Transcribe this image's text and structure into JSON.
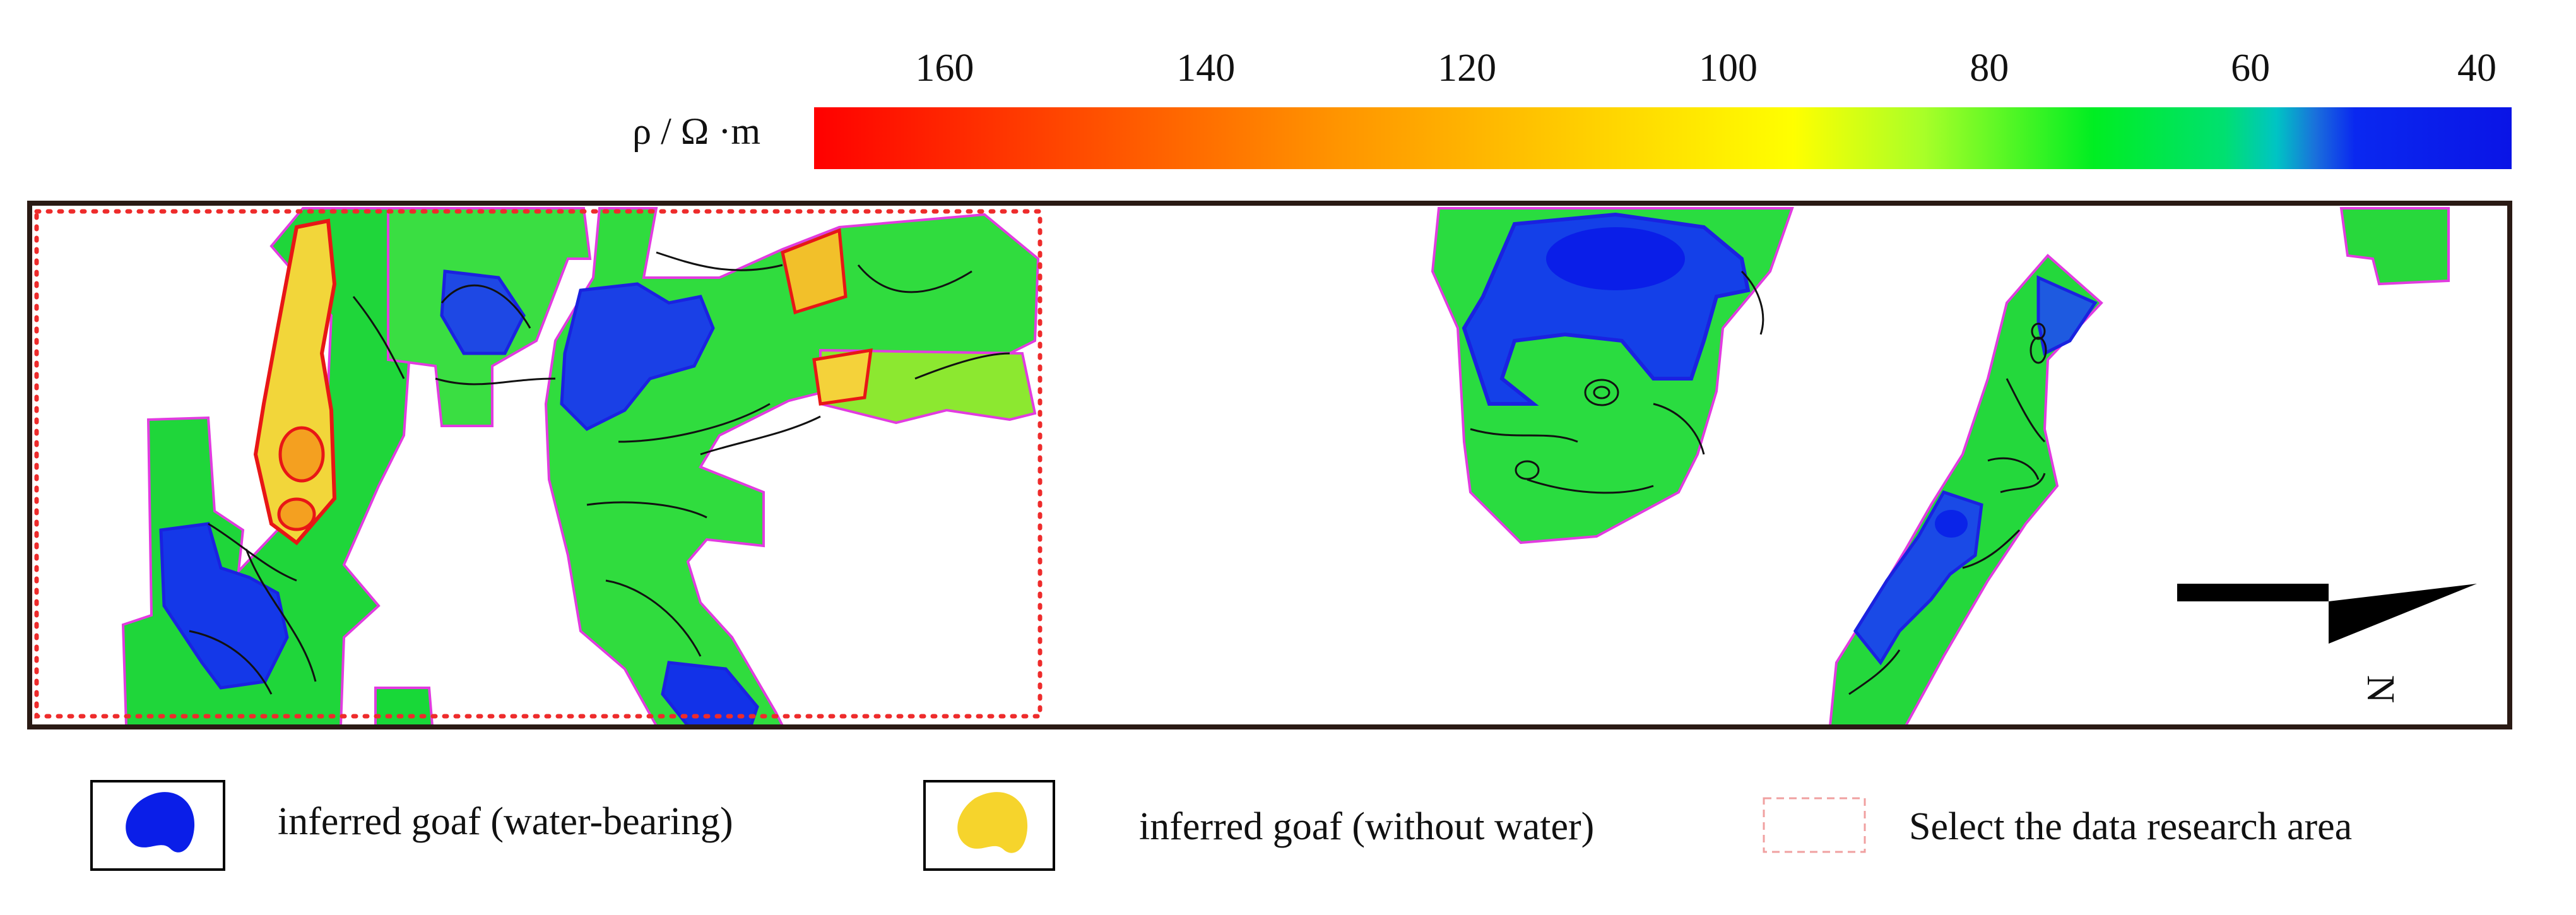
{
  "colorbar": {
    "unit_label": "ρ / Ω ·m",
    "ticks": [
      "160",
      "140",
      "120",
      "100",
      "80",
      "60",
      "40"
    ],
    "tick_values": [
      160,
      140,
      120,
      100,
      80,
      60,
      40
    ],
    "range": [
      40,
      170
    ],
    "stops": [
      {
        "value": 170,
        "color": "#ff0000"
      },
      {
        "value": 150,
        "color": "#ff4a00"
      },
      {
        "value": 130,
        "color": "#ff9400"
      },
      {
        "value": 110,
        "color": "#ffd200"
      },
      {
        "value": 95,
        "color": "#ffff00"
      },
      {
        "value": 85,
        "color": "#a8ff28"
      },
      {
        "value": 72,
        "color": "#00ee22"
      },
      {
        "value": 62,
        "color": "#00e070"
      },
      {
        "value": 58,
        "color": "#00c4c4"
      },
      {
        "value": 55,
        "color": "#1a6fdc"
      },
      {
        "value": 52,
        "color": "#0a28f0"
      },
      {
        "value": 40,
        "color": "#0a14e6"
      }
    ]
  },
  "map": {
    "north_label": "N",
    "colors": {
      "frame": "#2a1a14",
      "study_area": "#ee2b2b",
      "boundary": "#e23be0",
      "contour": "#111111",
      "goaf_water_line": "#1a22e0",
      "goaf_dry_line": "#e81616"
    }
  },
  "legend": {
    "items": [
      {
        "label": "inferred goaf (water-bearing)",
        "swatch_color": "#0a1ee8"
      },
      {
        "label": "inferred goaf (without water)",
        "swatch_color": "#f6d42c"
      },
      {
        "label": "Select the data research area",
        "swatch_color": "#f0a0a0"
      }
    ]
  }
}
